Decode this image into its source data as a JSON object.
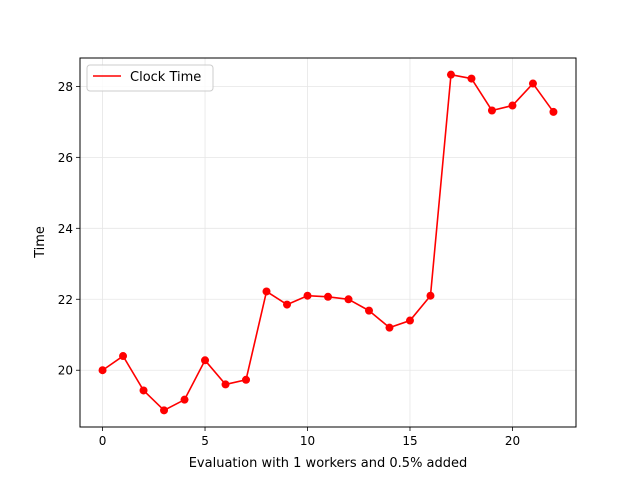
{
  "chart_data": {
    "type": "line",
    "xlabel": "Evaluation with 1 workers and 0.5% added",
    "ylabel": "Time",
    "xlim": [
      -1.1,
      23.1
    ],
    "ylim": [
      18.4,
      28.8
    ],
    "xticks": [
      0,
      5,
      10,
      15,
      20
    ],
    "yticks": [
      20,
      22,
      24,
      26,
      28
    ],
    "grid": true,
    "legend_position": "top-left",
    "series": [
      {
        "name": "Clock Time",
        "color": "#ff0000",
        "marker": "circle",
        "x": [
          0,
          1,
          2,
          3,
          4,
          5,
          6,
          7,
          8,
          9,
          10,
          11,
          12,
          13,
          14,
          15,
          16,
          17,
          18,
          19,
          20,
          21,
          22
        ],
        "values": [
          20.0,
          20.4,
          19.43,
          18.87,
          19.17,
          20.28,
          19.6,
          19.73,
          22.22,
          21.85,
          22.1,
          22.07,
          22.0,
          21.68,
          21.2,
          21.4,
          22.1,
          28.33,
          28.22,
          27.32,
          27.46,
          28.08,
          27.28
        ]
      }
    ]
  }
}
